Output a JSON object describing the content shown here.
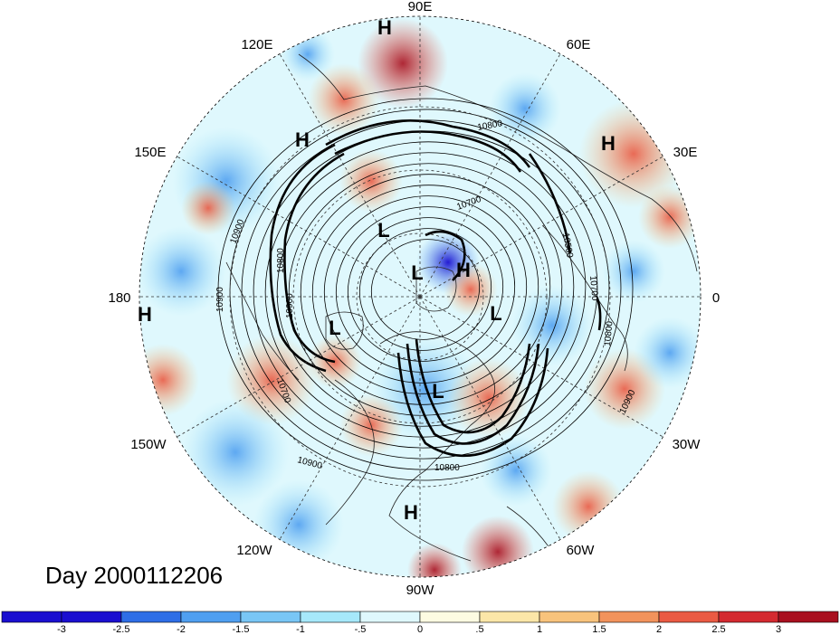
{
  "map": {
    "title": "Day 2000112206",
    "projection": "north-polar-stereographic",
    "longitude_labels": [
      "90E",
      "60E",
      "30E",
      "0",
      "30W",
      "60W",
      "90W",
      "120W",
      "150W",
      "180",
      "150E",
      "120E"
    ],
    "pressure_centers": [
      "H",
      "H",
      "H",
      "H",
      "H",
      "H",
      "L",
      "L",
      "L",
      "L",
      "L"
    ],
    "contour_labels": [
      "10800",
      "10700",
      "10500",
      "10700",
      "10800",
      "10900",
      "10800",
      "10900",
      "10900",
      "10800",
      "10900",
      "10700",
      "10900"
    ]
  },
  "colorbar": {
    "labels": [
      "-3",
      "-2.5",
      "-2",
      "-1.5",
      "-1",
      "-.5",
      "0",
      ".5",
      "1",
      "1.5",
      "2",
      "2.5",
      "3"
    ],
    "colors": [
      "#1a0fd0",
      "#2e6ee6",
      "#4f9ff0",
      "#79c6f5",
      "#a6e8fa",
      "#dff8fd",
      "#fdfbe2",
      "#fbe6a8",
      "#f8c37c",
      "#f2935c",
      "#ea5a43",
      "#d42a30",
      "#a9101f"
    ]
  }
}
